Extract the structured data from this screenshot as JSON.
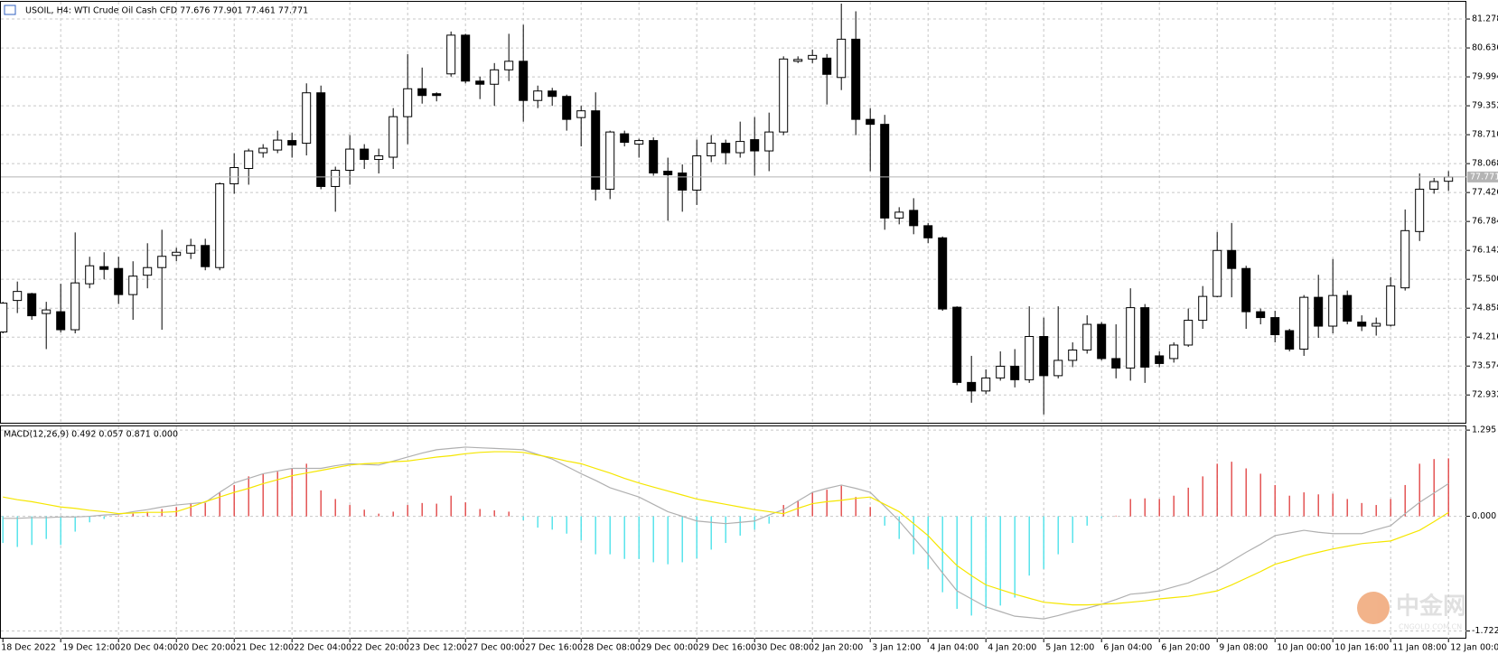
{
  "chart_data": [
    {
      "type": "candlestick",
      "title": "USOIL, H4:  WTI Crude Oil Cash CFD  77.676 77.901 77.461 77.771",
      "categories": [
        "18 Dec 2022",
        null,
        null,
        null,
        "19 Dec 12:00",
        null,
        null,
        null,
        "20 Dec 04:00",
        null,
        null,
        null,
        "20 Dec 20:00",
        null,
        null,
        null,
        "21 Dec 12:00",
        null,
        null,
        null,
        "22 Dec 04:00",
        null,
        null,
        null,
        "22 Dec 20:00",
        null,
        null,
        null,
        "23 Dec 12:00",
        null,
        null,
        null,
        "27 Dec 00:00",
        null,
        null,
        null,
        "27 Dec 16:00",
        null,
        null,
        null,
        "28 Dec 08:00",
        null,
        null,
        null,
        "29 Dec 00:00",
        null,
        null,
        null,
        "29 Dec 16:00",
        null,
        null,
        null,
        "30 Dec 08:00",
        null,
        null,
        null,
        "2 Jan 20:00",
        null,
        null,
        null,
        "3 Jan 12:00",
        null,
        null,
        null,
        "4 Jan 04:00",
        null,
        null,
        null,
        "4 Jan 20:00",
        null,
        null,
        null,
        "5 Jan 12:00",
        null,
        null,
        null,
        "6 Jan 04:00",
        null,
        null,
        null,
        "6 Jan 20:00",
        null,
        null,
        null,
        "9 Jan 08:00",
        null,
        null,
        null,
        "10 Jan 00:00",
        null,
        null,
        null,
        "10 Jan 16:00",
        null,
        null,
        null,
        "11 Jan 08:00",
        null,
        null,
        null,
        "12 Jan 00:00"
      ],
      "open": [
        74.33,
        75.03,
        75.18,
        74.74,
        74.78,
        74.38,
        75.4,
        75.78,
        75.74,
        75.16,
        75.59,
        75.76,
        76.03,
        76.08,
        76.25,
        75.76,
        77.62,
        77.96,
        78.31,
        78.37,
        78.58,
        78.52,
        79.64,
        77.56,
        77.92,
        78.39,
        78.16,
        78.21,
        79.11,
        79.73,
        79.62,
        80.06,
        80.92,
        79.9,
        79.83,
        80.15,
        80.34,
        79.47,
        79.68,
        79.56,
        79.09,
        79.24,
        77.5,
        78.73,
        78.5,
        78.58,
        77.9,
        77.86,
        77.48,
        78.24,
        78.52,
        78.31,
        78.6,
        78.35,
        78.77,
        80.34,
        80.39,
        80.41,
        79.98,
        80.83,
        79.05,
        78.94,
        76.86,
        77.03,
        76.69,
        76.42,
        74.88,
        73.21,
        73.02,
        73.31,
        73.57,
        73.27,
        74.23,
        73.36,
        73.7,
        73.93,
        74.5,
        73.74,
        73.53,
        74.87,
        73.8,
        73.74,
        74.04,
        74.59,
        75.12,
        76.14,
        75.74,
        74.78,
        74.65,
        74.36,
        73.95,
        75.1,
        74.46,
        75.14,
        74.55,
        74.46,
        74.48,
        75.31,
        76.56,
        77.5,
        77.676
      ],
      "high": [
        75.0,
        75.45,
        75.2,
        75.0,
        75.4,
        76.54,
        76.0,
        76.1,
        76.0,
        75.9,
        76.3,
        76.6,
        76.2,
        76.4,
        76.4,
        77.65,
        78.3,
        78.4,
        78.5,
        78.8,
        78.75,
        79.85,
        79.8,
        78.0,
        78.7,
        78.5,
        78.4,
        79.3,
        80.5,
        80.2,
        79.65,
        81.0,
        80.95,
        80.0,
        80.3,
        80.95,
        81.15,
        79.8,
        79.75,
        79.6,
        79.35,
        79.65,
        78.8,
        78.8,
        78.62,
        78.65,
        78.2,
        78.05,
        78.6,
        78.7,
        78.6,
        79.0,
        79.1,
        79.2,
        80.45,
        80.45,
        80.6,
        80.5,
        81.62,
        81.45,
        79.3,
        79.15,
        77.1,
        77.3,
        76.75,
        76.45,
        74.9,
        73.8,
        73.5,
        73.9,
        73.95,
        74.9,
        74.65,
        74.9,
        74.1,
        74.7,
        74.55,
        74.5,
        75.3,
        74.95,
        73.9,
        74.1,
        74.85,
        75.35,
        76.55,
        76.75,
        75.8,
        74.85,
        74.8,
        74.4,
        75.15,
        75.6,
        75.95,
        75.25,
        74.7,
        74.65,
        75.55,
        77.05,
        77.85,
        77.75,
        77.901
      ],
      "low": [
        74.3,
        74.75,
        74.6,
        73.95,
        74.32,
        74.3,
        75.3,
        75.5,
        74.95,
        74.6,
        75.3,
        74.38,
        75.9,
        75.95,
        75.7,
        75.7,
        77.4,
        77.6,
        78.2,
        78.3,
        78.2,
        78.25,
        77.5,
        77.0,
        77.6,
        77.95,
        77.85,
        77.95,
        78.5,
        79.4,
        79.45,
        80.0,
        79.85,
        79.5,
        79.35,
        79.9,
        79.0,
        79.3,
        79.35,
        78.8,
        78.45,
        77.25,
        77.28,
        78.45,
        78.2,
        77.8,
        76.8,
        77.0,
        77.15,
        78.1,
        78.05,
        78.2,
        77.8,
        77.9,
        78.7,
        80.3,
        80.3,
        79.38,
        79.7,
        78.7,
        77.9,
        76.6,
        76.72,
        76.5,
        76.3,
        74.8,
        73.15,
        72.76,
        72.95,
        73.25,
        73.1,
        73.2,
        72.5,
        73.3,
        73.55,
        73.85,
        73.7,
        73.3,
        73.25,
        73.2,
        73.55,
        73.65,
        74.0,
        74.4,
        75.1,
        75.1,
        74.4,
        74.5,
        74.1,
        73.9,
        73.8,
        74.2,
        74.3,
        74.5,
        74.35,
        74.25,
        74.45,
        75.25,
        76.35,
        77.4,
        77.461
      ],
      "close": [
        74.97,
        75.23,
        74.69,
        74.82,
        74.38,
        75.42,
        75.8,
        75.72,
        75.16,
        75.57,
        75.76,
        76.01,
        76.1,
        76.25,
        75.78,
        77.62,
        77.98,
        78.35,
        78.41,
        78.59,
        78.48,
        79.64,
        77.56,
        77.92,
        78.39,
        78.16,
        78.24,
        79.11,
        79.73,
        79.58,
        79.58,
        80.92,
        79.9,
        79.83,
        80.15,
        80.34,
        79.47,
        79.68,
        79.56,
        79.05,
        79.24,
        77.5,
        78.77,
        78.54,
        78.58,
        77.86,
        77.82,
        77.48,
        78.24,
        78.52,
        78.31,
        78.56,
        78.35,
        78.77,
        80.39,
        80.38,
        80.47,
        80.05,
        80.83,
        79.05,
        78.94,
        76.86,
        76.99,
        76.69,
        76.42,
        74.84,
        73.21,
        73.02,
        73.31,
        73.57,
        73.27,
        74.23,
        73.36,
        73.7,
        73.93,
        74.5,
        73.74,
        73.53,
        74.87,
        73.55,
        73.63,
        74.04,
        74.59,
        75.12,
        76.14,
        75.74,
        74.78,
        74.65,
        74.27,
        73.95,
        75.1,
        74.46,
        75.14,
        74.57,
        74.46,
        74.52,
        75.35,
        76.58,
        77.5,
        77.67,
        77.771
      ],
      "up_color": "#ffffff",
      "down_color": "#000000",
      "outline_color": "#000000",
      "ylim": [
        72.295,
        81.66
      ],
      "yticks": [
        81.278,
        80.636,
        79.994,
        79.352,
        {
          "value": 78.71,
          "label": "78.710"
        },
        78.068,
        77.426,
        76.784,
        76.142,
        {
          "value": 75.5,
          "label": "75.500"
        },
        74.858,
        74.216,
        73.574,
        72.932
      ],
      "grid": true
    },
    {
      "type": "macd",
      "title": "MACD(12,26,9) 0.492 0.057 0.871 0.000",
      "histogram": [
        -0.4,
        -0.46,
        -0.43,
        -0.34,
        -0.43,
        -0.23,
        -0.09,
        -0.04,
        0.01,
        0.04,
        0.07,
        0.11,
        0.14,
        0.2,
        0.2,
        0.36,
        0.47,
        0.6,
        0.64,
        0.67,
        0.72,
        0.79,
        0.39,
        0.26,
        0.17,
        0.1,
        0.04,
        0.07,
        0.17,
        0.2,
        0.19,
        0.31,
        0.21,
        0.11,
        0.09,
        0.07,
        -0.06,
        -0.17,
        -0.2,
        -0.26,
        -0.36,
        -0.57,
        -0.57,
        -0.64,
        -0.64,
        -0.69,
        -0.72,
        -0.69,
        -0.63,
        -0.5,
        -0.4,
        -0.29,
        -0.2,
        -0.11,
        0.17,
        0.24,
        0.36,
        0.4,
        0.46,
        0.29,
        0.14,
        -0.14,
        -0.34,
        -0.57,
        -0.79,
        -1.14,
        -1.39,
        -1.49,
        -1.39,
        -1.34,
        -1.22,
        -0.89,
        -0.79,
        -0.57,
        -0.4,
        -0.14,
        -0.03,
        0.01,
        0.26,
        0.27,
        0.26,
        0.31,
        0.43,
        0.6,
        0.79,
        0.82,
        0.72,
        0.64,
        0.47,
        0.31,
        0.36,
        0.33,
        0.34,
        0.26,
        0.2,
        0.17,
        0.26,
        0.47,
        0.79,
        0.86,
        0.871
      ],
      "up_color": "#e03a3a",
      "down_color": "#40e0e8",
      "lines": [
        {
          "color": "#b0b0b0",
          "values": [
            -0.03,
            -0.03,
            -0.02,
            -0.02,
            -0.01,
            -0.01,
            0,
            0.02,
            0.03,
            0.07,
            0.1,
            0.14,
            0.17,
            0.19,
            0.21,
            0.36,
            0.5,
            0.57,
            0.64,
            0.68,
            0.72,
            0.72,
            0.72,
            0.76,
            0.79,
            0.78,
            0.77,
            0.83,
            0.89,
            0.95,
            1.0,
            1.02,
            1.04,
            1.03,
            1.02,
            1.01,
            1.0,
            0.93,
            0.86,
            0.75,
            0.64,
            0.54,
            0.43,
            0.36,
            0.29,
            0.18,
            0.07,
            0,
            -0.07,
            -0.09,
            -0.11,
            -0.09,
            -0.07,
            0.02,
            0.1,
            0.23,
            0.36,
            0.42,
            0.47,
            0.42,
            0.36,
            0.15,
            -0.07,
            -0.32,
            -0.57,
            -0.85,
            -1.12,
            -1.24,
            -1.36,
            -1.43,
            -1.5,
            -1.52,
            -1.54,
            -1.49,
            -1.43,
            -1.38,
            -1.32,
            -1.25,
            -1.17,
            -1.15,
            -1.12,
            -1.06,
            -1.0,
            -0.9,
            -0.8,
            -0.67,
            -0.54,
            -0.42,
            -0.29,
            -0.25,
            -0.21,
            -0.24,
            -0.26,
            -0.26,
            -0.26,
            -0.2,
            -0.14,
            0.04,
            0.21,
            0.35,
            0.492
          ]
        },
        {
          "color": "#f5e600",
          "values": [
            0.29,
            0.25,
            0.22,
            0.18,
            0.14,
            0.12,
            0.09,
            0.07,
            0.04,
            0.05,
            0.06,
            0.06,
            0.07,
            0.14,
            0.22,
            0.29,
            0.36,
            0.42,
            0.49,
            0.55,
            0.61,
            0.65,
            0.69,
            0.73,
            0.77,
            0.79,
            0.8,
            0.82,
            0.83,
            0.86,
            0.89,
            0.91,
            0.94,
            0.96,
            0.97,
            0.97,
            0.96,
            0.92,
            0.88,
            0.83,
            0.79,
            0.72,
            0.65,
            0.57,
            0.5,
            0.44,
            0.38,
            0.32,
            0.26,
            0.22,
            0.18,
            0.14,
            0.1,
            0.07,
            0.04,
            0.12,
            0.19,
            0.22,
            0.24,
            0.27,
            0.29,
            0.18,
            0.07,
            -0.11,
            -0.29,
            -0.52,
            -0.74,
            -0.89,
            -1.03,
            -1.1,
            -1.17,
            -1.23,
            -1.29,
            -1.31,
            -1.33,
            -1.33,
            -1.32,
            -1.31,
            -1.29,
            -1.27,
            -1.24,
            -1.22,
            -1.2,
            -1.16,
            -1.12,
            -1.03,
            -0.93,
            -0.83,
            -0.72,
            -0.66,
            -0.59,
            -0.54,
            -0.49,
            -0.45,
            -0.41,
            -0.39,
            -0.37,
            -0.29,
            -0.21,
            -0.08,
            0.057
          ]
        }
      ],
      "ylim": [
        -1.837,
        1.351
      ],
      "yticks": [
        1.295,
        {
          "value": 0,
          "label": "0.000"
        },
        -1.722
      ],
      "grid": true
    }
  ],
  "watermark": {
    "brand": "中金网",
    "site": "CNGOLD.COM.CN"
  }
}
